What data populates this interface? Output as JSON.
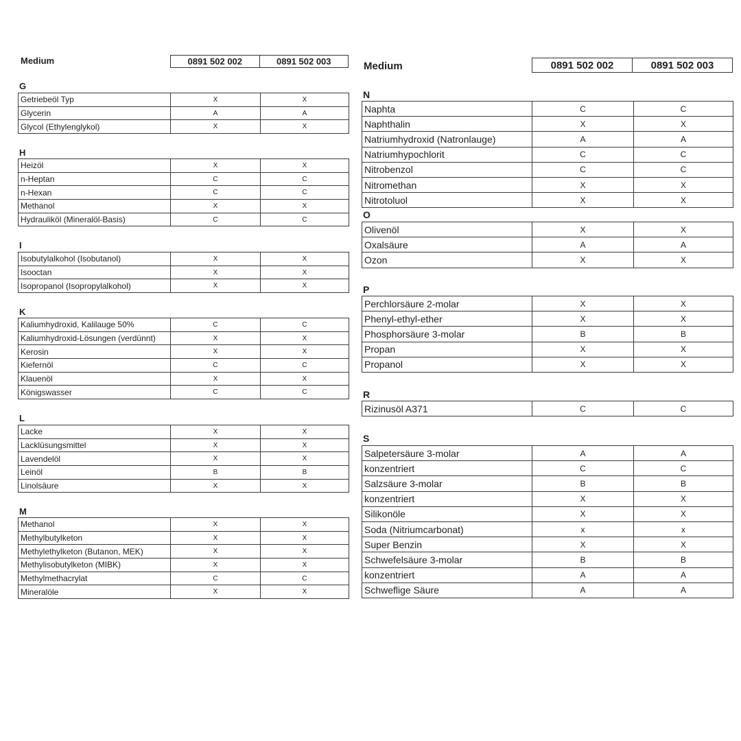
{
  "left": {
    "medium_label": "Medium",
    "columns": [
      "0891 502 002",
      "0891 502 003"
    ],
    "sections": [
      {
        "letter": "G",
        "rows": [
          {
            "medium": "Getriebeöl Typ",
            "values": [
              "X",
              "X"
            ]
          },
          {
            "medium": "Glycerin",
            "values": [
              "A",
              "A"
            ]
          },
          {
            "medium": "Glycol (Ethylenglykol)",
            "values": [
              "X",
              "X"
            ]
          }
        ]
      },
      {
        "letter": "H",
        "rows": [
          {
            "medium": "Heizöl",
            "values": [
              "X",
              "X"
            ]
          },
          {
            "medium": "n-Heptan",
            "values": [
              "C",
              "C"
            ]
          },
          {
            "medium": "n-Hexan",
            "values": [
              "C",
              "C"
            ]
          },
          {
            "medium": "Methanol",
            "values": [
              "X",
              "X"
            ]
          },
          {
            "medium": "Hydrauliköl (Mineralöl-Basis)",
            "values": [
              "C",
              "C"
            ]
          }
        ]
      },
      {
        "letter": "I",
        "rows": [
          {
            "medium": "Isobutylalkohol  (Isobutanol)",
            "values": [
              "X",
              "X"
            ]
          },
          {
            "medium": "Isooctan",
            "values": [
              "X",
              "X"
            ]
          },
          {
            "medium": "Isopropanol (Isopropylalkohol)",
            "values": [
              "X",
              "X"
            ]
          }
        ]
      },
      {
        "letter": "K",
        "rows": [
          {
            "medium": "Kaliumhydroxid, Kalilauge 50%",
            "values": [
              "C",
              "C"
            ]
          },
          {
            "medium": "Kaliumhydroxid-Lösungen (verdünnt)",
            "values": [
              "X",
              "X"
            ]
          },
          {
            "medium": "Kerosin",
            "values": [
              "X",
              "X"
            ]
          },
          {
            "medium": "Kiefernöl",
            "values": [
              "C",
              "C"
            ]
          },
          {
            "medium": "Klauenöl",
            "values": [
              "X",
              "X"
            ]
          },
          {
            "medium": "Königswasser",
            "values": [
              "C",
              "C"
            ]
          }
        ]
      },
      {
        "letter": "L",
        "rows": [
          {
            "medium": "Lacke",
            "values": [
              "X",
              "X"
            ]
          },
          {
            "medium": "Lacklüsungsmittel",
            "values": [
              "X",
              "X"
            ]
          },
          {
            "medium": "Lavendelöl",
            "values": [
              "X",
              "X"
            ]
          },
          {
            "medium": "Leinöl",
            "values": [
              "B",
              "B"
            ]
          },
          {
            "medium": "Linolsäure",
            "values": [
              "X",
              "X"
            ]
          }
        ]
      },
      {
        "letter": "M",
        "rows": [
          {
            "medium": "Methanol",
            "values": [
              "X",
              "X"
            ]
          },
          {
            "medium": "Methylbutylketon",
            "values": [
              "X",
              "X"
            ]
          },
          {
            "medium": "Methylethylketon (Butanon, MEK)",
            "values": [
              "X",
              "X"
            ]
          },
          {
            "medium": "Methylisobutylketon (MIBK)",
            "values": [
              "X",
              "X"
            ]
          },
          {
            "medium": "Methylmethacrylat",
            "values": [
              "C",
              "C"
            ]
          },
          {
            "medium": "Mineralöle",
            "values": [
              "X",
              "X"
            ]
          }
        ]
      }
    ]
  },
  "right": {
    "medium_label": "Medium",
    "columns": [
      "0891 502 002",
      "0891 502 003"
    ],
    "sections": [
      {
        "letter": "N",
        "rows": [
          {
            "medium": "Naphta",
            "values": [
              "C",
              "C"
            ]
          },
          {
            "medium": "Naphthalin",
            "values": [
              "X",
              "X"
            ]
          },
          {
            "medium": "Natriumhydroxid (Natronlauge)",
            "values": [
              "A",
              "A"
            ]
          },
          {
            "medium": "Natriumhypochlorit",
            "values": [
              "C",
              "C"
            ]
          },
          {
            "medium": "Nitrobenzol",
            "values": [
              "C",
              "C"
            ]
          },
          {
            "medium": "Nitromethan",
            "values": [
              "X",
              "X"
            ]
          },
          {
            "medium": "Nitrotoluol",
            "values": [
              "X",
              "X"
            ]
          }
        ]
      },
      {
        "letter": "O",
        "rows": [
          {
            "medium": "Olivenöl",
            "values": [
              "X",
              "X"
            ]
          },
          {
            "medium": "Oxalsäure",
            "values": [
              "A",
              "A"
            ]
          },
          {
            "medium": "Ozon",
            "values": [
              "X",
              "X"
            ]
          }
        ]
      },
      {
        "letter": "P",
        "rows": [
          {
            "medium": "Perchlorsäure 2-molar",
            "values": [
              "X",
              "X"
            ]
          },
          {
            "medium": "Phenyl-ethyl-ether",
            "values": [
              "X",
              "X"
            ]
          },
          {
            "medium": "Phosphorsäure 3-molar",
            "values": [
              "B",
              "B"
            ]
          },
          {
            "medium": "Propan",
            "values": [
              "X",
              "X"
            ]
          },
          {
            "medium": "Propanol",
            "values": [
              "X",
              "X"
            ]
          }
        ]
      },
      {
        "letter": "R",
        "rows": [
          {
            "medium": "Rizinusöl A371",
            "values": [
              "C",
              "C"
            ]
          }
        ]
      },
      {
        "letter": "S",
        "rows": [
          {
            "medium": "Salpetersäure 3-molar",
            "values": [
              "A",
              "A"
            ]
          },
          {
            "medium": "konzentriert",
            "values": [
              "C",
              "C"
            ]
          },
          {
            "medium": "Salzsäure 3-molar",
            "values": [
              "B",
              "B"
            ]
          },
          {
            "medium": "konzentriert",
            "values": [
              "X",
              "X"
            ]
          },
          {
            "medium": "Silikonöle",
            "values": [
              "X",
              "X"
            ]
          },
          {
            "medium": "Soda (Nitriumcarbonat)",
            "values": [
              "x",
              "x"
            ]
          },
          {
            "medium": "Super Benzin",
            "values": [
              "X",
              "X"
            ]
          },
          {
            "medium": "Schwefelsäure 3-molar",
            "values": [
              "B",
              "B"
            ]
          },
          {
            "medium": "konzentriert",
            "values": [
              "A",
              "A"
            ]
          },
          {
            "medium": "Schweflige Säure",
            "values": [
              "A",
              "A"
            ]
          }
        ]
      }
    ]
  }
}
